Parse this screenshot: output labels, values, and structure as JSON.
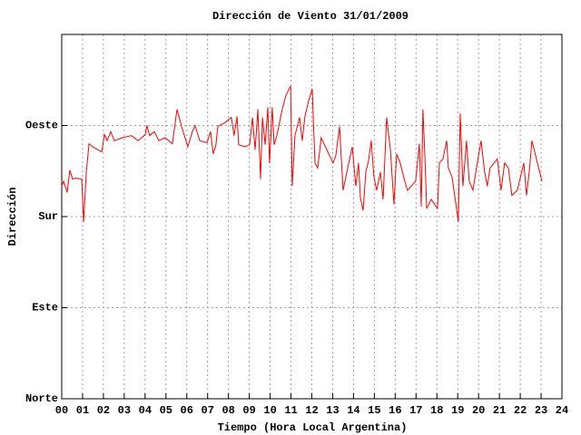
{
  "chart_data": {
    "type": "line",
    "title": "Dirección de Viento 31/01/2009",
    "xlabel": "Tiempo (Hora Local Argentina)",
    "ylabel": "Dirección",
    "xlim": [
      0,
      24
    ],
    "xticks": [
      {
        "value": 0,
        "label": "00"
      },
      {
        "value": 1,
        "label": "01"
      },
      {
        "value": 2,
        "label": "02"
      },
      {
        "value": 3,
        "label": "03"
      },
      {
        "value": 4,
        "label": "04"
      },
      {
        "value": 5,
        "label": "05"
      },
      {
        "value": 6,
        "label": "06"
      },
      {
        "value": 7,
        "label": "07"
      },
      {
        "value": 8,
        "label": "08"
      },
      {
        "value": 9,
        "label": "09"
      },
      10,
      11,
      12,
      13,
      14,
      15,
      16,
      17,
      18,
      19,
      20,
      21,
      22,
      23,
      24
    ],
    "ylim": [
      0,
      360
    ],
    "yticks": [
      {
        "value": 0,
        "label": "Norte"
      },
      {
        "value": 90,
        "label": "Este"
      },
      {
        "value": 180,
        "label": "Sur"
      },
      {
        "value": 270,
        "label": "Oeste"
      }
    ],
    "grid": true,
    "series": [
      {
        "color": "#ff0000",
        "x": [
          0,
          0.09,
          0.26,
          0.39,
          0.52,
          0.65,
          0.96,
          1.05,
          1.18,
          1.31,
          1.48,
          1.92,
          2.05,
          2.18,
          2.35,
          2.53,
          2.92,
          3.35,
          3.66,
          4.01,
          4.09,
          4.22,
          4.44,
          4.66,
          4.96,
          5.31,
          5.53,
          5.75,
          6.05,
          6.27,
          6.4,
          6.62,
          6.97,
          7.14,
          7.27,
          7.4,
          7.49,
          7.84,
          8.14,
          8.27,
          8.41,
          8.49,
          8.8,
          9.02,
          9.15,
          9.28,
          9.41,
          9.54,
          9.63,
          9.76,
          9.89,
          9.97,
          10.1,
          10.19,
          10.32,
          10.41,
          10.58,
          10.76,
          10.98,
          11.06,
          11.19,
          11.41,
          11.54,
          11.67,
          11.85,
          12.02,
          12.15,
          12.28,
          12.45,
          12.72,
          13.02,
          13.15,
          13.33,
          13.5,
          13.68,
          13.94,
          14.11,
          14.24,
          14.33,
          14.46,
          14.59,
          14.72,
          14.85,
          14.98,
          15.11,
          15.29,
          15.42,
          15.59,
          15.77,
          15.94,
          16.07,
          16.24,
          16.46,
          16.59,
          16.98,
          17.16,
          17.25,
          17.33,
          17.42,
          17.51,
          17.73,
          18.03,
          18.12,
          18.29,
          18.47,
          18.55,
          18.73,
          19.03,
          19.12,
          19.25,
          19.42,
          19.55,
          19.73,
          19.9,
          20.12,
          20.29,
          20.42,
          20.55,
          20.9,
          21.08,
          21.25,
          21.43,
          21.6,
          21.86,
          22.17,
          22.3,
          22.43,
          22.56,
          23.04
        ],
        "values": [
          210,
          215,
          204,
          226,
          217,
          218,
          217,
          175,
          224,
          252,
          249,
          244,
          261,
          255,
          264,
          255,
          258,
          260,
          255,
          261,
          270,
          260,
          264,
          255,
          258,
          252,
          286,
          269,
          249,
          264,
          270,
          255,
          253,
          264,
          242,
          251,
          269,
          273,
          278,
          260,
          279,
          251,
          249,
          251,
          278,
          246,
          286,
          217,
          278,
          251,
          288,
          233,
          288,
          251,
          260,
          269,
          286,
          300,
          309,
          210,
          260,
          278,
          255,
          279,
          295,
          306,
          233,
          228,
          258,
          246,
          233,
          240,
          269,
          206,
          224,
          249,
          210,
          233,
          199,
          186,
          224,
          235,
          255,
          219,
          206,
          224,
          197,
          278,
          246,
          192,
          242,
          233,
          215,
          206,
          215,
          252,
          190,
          286,
          242,
          188,
          197,
          188,
          233,
          237,
          255,
          228,
          219,
          175,
          282,
          210,
          255,
          215,
          206,
          228,
          255,
          224,
          210,
          228,
          237,
          206,
          233,
          228,
          201,
          206,
          233,
          201,
          224,
          255,
          215
        ]
      }
    ]
  }
}
